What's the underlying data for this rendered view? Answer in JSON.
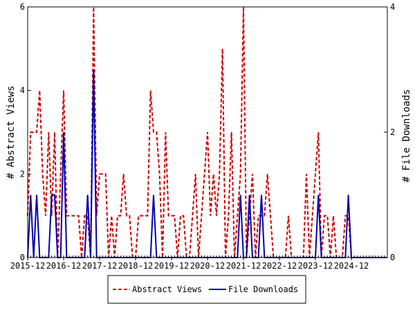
{
  "chart_data": {
    "type": "line",
    "x_tick_labels": [
      "2015-12",
      "2016-12",
      "2017-12",
      "2018-12",
      "2019-12",
      "2020-12",
      "2021-12",
      "2022-12",
      "2023-12",
      "2024-12"
    ],
    "x_start": "2015-12",
    "x_end": "2025-12",
    "y_left": {
      "label": "# Abstract Views",
      "ticks": [
        "0",
        "2",
        "4",
        "6"
      ],
      "range": [
        0,
        6
      ]
    },
    "y_right": {
      "label": "# File Downloads",
      "ticks": [
        "0",
        "2",
        "4"
      ],
      "range": [
        0,
        4
      ]
    },
    "grid": false,
    "legend_position": "bottom",
    "series": [
      {
        "name": "Abstract Views",
        "axis": "left",
        "color": "#cc0000",
        "style": "dashed",
        "months": [
          "2015-12",
          "2016-01",
          "2016-02",
          "2016-03",
          "2016-04",
          "2016-05",
          "2016-06",
          "2016-07",
          "2016-08",
          "2016-09",
          "2016-10",
          "2016-11",
          "2016-12",
          "2017-01",
          "2017-02",
          "2017-03",
          "2017-04",
          "2017-05",
          "2017-06",
          "2017-07",
          "2017-08",
          "2017-09",
          "2017-10",
          "2017-11",
          "2017-12",
          "2018-01",
          "2018-02",
          "2018-03",
          "2018-04",
          "2018-05",
          "2018-06",
          "2018-07",
          "2018-08",
          "2018-09",
          "2018-10",
          "2018-11",
          "2018-12",
          "2019-01",
          "2019-02",
          "2019-03",
          "2019-04",
          "2019-05",
          "2019-06",
          "2019-07",
          "2019-08",
          "2019-09",
          "2019-10",
          "2019-11",
          "2019-12",
          "2020-01",
          "2020-02",
          "2020-03",
          "2020-04",
          "2020-05",
          "2020-06",
          "2020-07",
          "2020-08",
          "2020-09",
          "2020-10",
          "2020-11",
          "2020-12",
          "2021-01",
          "2021-02",
          "2021-03",
          "2021-04",
          "2021-05",
          "2021-06",
          "2021-07",
          "2021-08",
          "2021-09",
          "2021-10",
          "2021-11",
          "2021-12",
          "2022-01",
          "2022-02",
          "2022-03",
          "2022-04",
          "2022-05",
          "2022-06",
          "2022-07",
          "2022-08",
          "2022-09",
          "2022-10",
          "2022-11",
          "2022-12",
          "2023-01",
          "2023-02",
          "2023-03",
          "2023-04",
          "2023-05",
          "2023-06",
          "2023-07",
          "2023-08",
          "2023-09",
          "2023-10",
          "2023-11",
          "2023-12",
          "2024-01",
          "2024-02",
          "2024-03",
          "2024-04",
          "2024-05",
          "2024-06",
          "2024-07",
          "2024-08",
          "2024-09",
          "2024-10",
          "2024-11",
          "2024-12",
          "2025-01",
          "2025-02",
          "2025-03",
          "2025-04",
          "2025-05",
          "2025-06",
          "2025-07",
          "2025-08",
          "2025-09",
          "2025-10",
          "2025-11",
          "2025-12"
        ],
        "values": [
          1,
          3,
          3,
          3,
          4,
          2,
          1,
          3,
          1,
          3,
          0,
          2,
          4,
          1,
          1,
          1,
          1,
          1,
          0,
          1,
          1,
          0,
          6,
          1,
          2,
          2,
          2,
          0,
          1,
          0,
          1,
          1,
          2,
          1,
          1,
          0,
          0,
          1,
          1,
          1,
          1,
          4,
          3,
          3,
          2,
          0,
          3,
          1,
          1,
          1,
          0,
          1,
          1,
          0,
          0,
          1,
          2,
          0,
          1,
          2,
          3,
          1,
          2,
          1,
          2,
          5,
          0,
          1,
          3,
          0,
          1,
          2,
          6,
          0,
          1,
          2,
          0,
          1,
          1,
          1,
          2,
          1,
          0,
          0,
          0,
          0,
          0,
          1,
          0,
          0,
          0,
          0,
          0,
          2,
          0,
          1,
          2,
          3,
          0,
          1,
          1,
          0,
          1,
          0,
          0,
          0,
          1,
          1,
          0,
          0,
          0,
          0,
          0,
          0,
          0,
          0,
          0,
          0,
          0,
          0,
          0
        ]
      },
      {
        "name": "File Downloads",
        "axis": "right",
        "color": "#0000aa",
        "style": "solid",
        "months": [
          "2015-12",
          "2016-01",
          "2016-02",
          "2016-03",
          "2016-04",
          "2016-05",
          "2016-06",
          "2016-07",
          "2016-08",
          "2016-09",
          "2016-10",
          "2016-11",
          "2016-12",
          "2017-01",
          "2017-02",
          "2017-03",
          "2017-04",
          "2017-05",
          "2017-06",
          "2017-07",
          "2017-08",
          "2017-09",
          "2017-10",
          "2017-11",
          "2017-12",
          "2018-01",
          "2018-02",
          "2018-03",
          "2018-04",
          "2018-05",
          "2018-06",
          "2018-07",
          "2018-08",
          "2018-09",
          "2018-10",
          "2018-11",
          "2018-12",
          "2019-01",
          "2019-02",
          "2019-03",
          "2019-04",
          "2019-05",
          "2019-06",
          "2019-07",
          "2019-08",
          "2019-09",
          "2019-10",
          "2019-11",
          "2019-12",
          "2020-01",
          "2020-02",
          "2020-03",
          "2020-04",
          "2020-05",
          "2020-06",
          "2020-07",
          "2020-08",
          "2020-09",
          "2020-10",
          "2020-11",
          "2020-12",
          "2021-01",
          "2021-02",
          "2021-03",
          "2021-04",
          "2021-05",
          "2021-06",
          "2021-07",
          "2021-08",
          "2021-09",
          "2021-10",
          "2021-11",
          "2021-12",
          "2022-01",
          "2022-02",
          "2022-03",
          "2022-04",
          "2022-05",
          "2022-06",
          "2022-07",
          "2022-08",
          "2022-09",
          "2022-10",
          "2022-11",
          "2022-12",
          "2023-01",
          "2023-02",
          "2023-03",
          "2023-04",
          "2023-05",
          "2023-06",
          "2023-07",
          "2023-08",
          "2023-09",
          "2023-10",
          "2023-11",
          "2023-12",
          "2024-01",
          "2024-02",
          "2024-03",
          "2024-04",
          "2024-05",
          "2024-06",
          "2024-07",
          "2024-08",
          "2024-09",
          "2024-10",
          "2024-11",
          "2024-12",
          "2025-01",
          "2025-02",
          "2025-03",
          "2025-04",
          "2025-05",
          "2025-06",
          "2025-07",
          "2025-08",
          "2025-09",
          "2025-10",
          "2025-11",
          "2025-12"
        ],
        "values": [
          0,
          1,
          0,
          1,
          0,
          0,
          0,
          0,
          1,
          1,
          0,
          0,
          2,
          0,
          0,
          0,
          0,
          0,
          0,
          0,
          1,
          0,
          3,
          0,
          0,
          0,
          0,
          0,
          0,
          0,
          0,
          0,
          0,
          0,
          0,
          0,
          0,
          0,
          0,
          0,
          0,
          0,
          1,
          0,
          0,
          0,
          0,
          0,
          0,
          0,
          0,
          0,
          0,
          0,
          0,
          0,
          0,
          0,
          0,
          0,
          0,
          0,
          0,
          0,
          0,
          0,
          0,
          0,
          0,
          0,
          0,
          1,
          0,
          0,
          1,
          0,
          0,
          0,
          1,
          0,
          0,
          0,
          0,
          0,
          0,
          0,
          0,
          0,
          0,
          0,
          0,
          0,
          0,
          0,
          0,
          0,
          0,
          1,
          0,
          0,
          0,
          0,
          0,
          0,
          0,
          0,
          0,
          1,
          0,
          0,
          0,
          0,
          0,
          0,
          0,
          0,
          0,
          0,
          0,
          0,
          0
        ]
      }
    ]
  }
}
